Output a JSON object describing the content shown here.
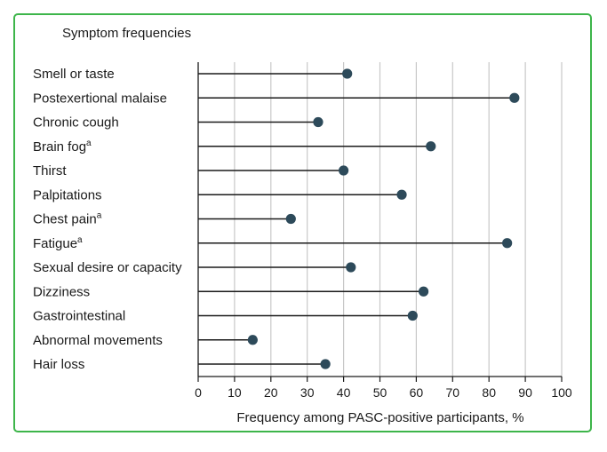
{
  "chart_data": {
    "type": "lollipop",
    "title": "Symptom frequencies",
    "xlabel": "Frequency among PASC-positive participants, %",
    "ylabel": "",
    "xlim": [
      0,
      100
    ],
    "xticks": [
      0,
      10,
      20,
      30,
      40,
      50,
      60,
      70,
      80,
      90,
      100
    ],
    "grid": "vertical",
    "categories": [
      {
        "label": "Smell or taste",
        "sup": ""
      },
      {
        "label": "Postexertional malaise",
        "sup": ""
      },
      {
        "label": "Chronic cough",
        "sup": ""
      },
      {
        "label": "Brain fog",
        "sup": "a"
      },
      {
        "label": "Thirst",
        "sup": ""
      },
      {
        "label": "Palpitations",
        "sup": ""
      },
      {
        "label": "Chest pain",
        "sup": "a"
      },
      {
        "label": "Fatigue",
        "sup": "a"
      },
      {
        "label": "Sexual desire or capacity",
        "sup": ""
      },
      {
        "label": "Dizziness",
        "sup": ""
      },
      {
        "label": "Gastrointestinal",
        "sup": ""
      },
      {
        "label": "Abnormal movements",
        "sup": ""
      },
      {
        "label": "Hair loss",
        "sup": ""
      }
    ],
    "values": [
      41,
      87,
      33,
      64,
      40,
      56,
      25.5,
      85,
      42,
      62,
      59,
      15,
      35
    ],
    "colors": {
      "frame": "#3db54a",
      "marker": "#2d4a5a",
      "stem": "#1a1a1a",
      "grid": "#c8c8c8"
    }
  }
}
